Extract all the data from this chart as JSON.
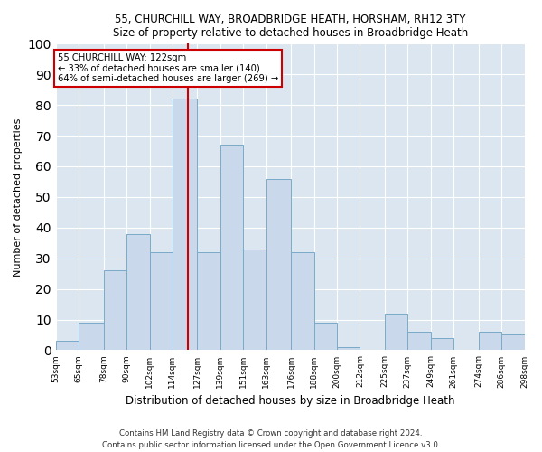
{
  "title": "55, CHURCHILL WAY, BROADBRIDGE HEATH, HORSHAM, RH12 3TY",
  "subtitle": "Size of property relative to detached houses in Broadbridge Heath",
  "xlabel": "Distribution of detached houses by size in Broadbridge Heath",
  "ylabel": "Number of detached properties",
  "bar_color": "#c9d9eb",
  "bar_edge_color": "#7aaac8",
  "background_color": "#dce6f0",
  "fig_background": "#ffffff",
  "grid_color": "#ffffff",
  "vline_x": 122,
  "vline_color": "#cc0000",
  "annotation_text": "55 CHURCHILL WAY: 122sqm\n← 33% of detached houses are smaller (140)\n64% of semi-detached houses are larger (269) →",
  "annotation_box_color": "#cc0000",
  "bins": [
    53,
    65,
    78,
    90,
    102,
    114,
    127,
    139,
    151,
    163,
    176,
    188,
    200,
    212,
    225,
    237,
    249,
    261,
    274,
    286,
    298
  ],
  "counts": [
    3,
    9,
    26,
    38,
    32,
    82,
    32,
    67,
    33,
    56,
    32,
    9,
    1,
    0,
    12,
    6,
    4,
    0,
    6,
    5
  ],
  "tick_labels": [
    "53sqm",
    "65sqm",
    "78sqm",
    "90sqm",
    "102sqm",
    "114sqm",
    "127sqm",
    "139sqm",
    "151sqm",
    "163sqm",
    "176sqm",
    "188sqm",
    "200sqm",
    "212sqm",
    "225sqm",
    "237sqm",
    "249sqm",
    "261sqm",
    "274sqm",
    "286sqm",
    "298sqm"
  ],
  "footer_text": "Contains HM Land Registry data © Crown copyright and database right 2024.\nContains public sector information licensed under the Open Government Licence v3.0.",
  "ylim": [
    0,
    100
  ],
  "figsize": [
    6.0,
    5.0
  ],
  "dpi": 100
}
